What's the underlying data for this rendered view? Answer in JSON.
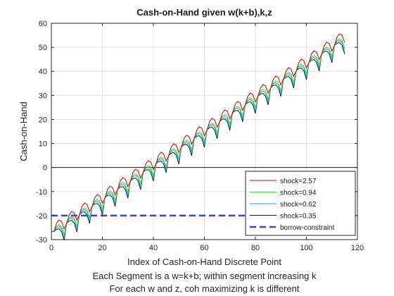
{
  "chart_data": {
    "type": "line",
    "title": "Cash-on-Hand given w(k+b),k,z",
    "xlabel": "Index of Cash-on-Hand Discrete Point",
    "xlabel_lines": [
      "Each Segment is a w=k+b; within segment increasing k",
      "For each w and z, coh maximizing k is different"
    ],
    "ylabel": "Cash-on-Hand",
    "xlim": [
      0,
      120
    ],
    "ylim": [
      -30,
      60
    ],
    "xticks": [
      0,
      20,
      40,
      60,
      80,
      100,
      120
    ],
    "yticks": [
      -30,
      -20,
      -10,
      0,
      10,
      20,
      30,
      40,
      50,
      60
    ],
    "grid": true,
    "zero_line": true,
    "legend_position": "bottom-right",
    "segments": {
      "count": 23,
      "points_per_segment": 5,
      "first_segment_x": [
        1,
        5
      ],
      "last_segment_x": [
        111,
        115
      ],
      "w_start": -26.7,
      "w_step": 3.52
    },
    "series": [
      {
        "name": "shock=2.57",
        "color": "#cc0000",
        "shape": [
          0,
          3.5,
          4.9,
          4.3,
          1.2
        ]
      },
      {
        "name": "shock=0.94",
        "color": "#33dd33",
        "shape": [
          0,
          2.2,
          2.9,
          2.1,
          -1.2
        ]
      },
      {
        "name": "shock=0.62",
        "color": "#11aaee",
        "shape": [
          0,
          1.7,
          2.2,
          1.2,
          -2.5
        ]
      },
      {
        "name": "shock=0.35",
        "color": "#1a1a1a",
        "shape": [
          0,
          1.0,
          1.2,
          0.0,
          -3.6
        ]
      }
    ],
    "reference_line": {
      "name": "borrow-constraint",
      "y": -20,
      "color": "#3344ee",
      "style": "dashed"
    }
  }
}
